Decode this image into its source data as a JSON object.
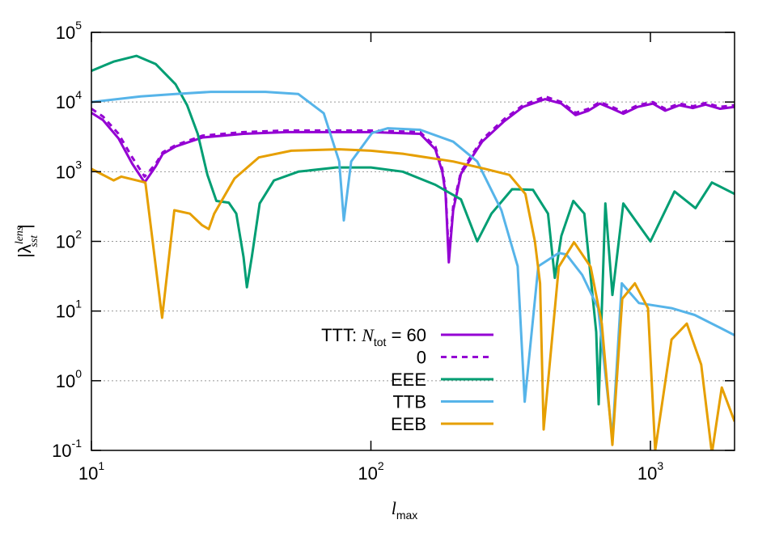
{
  "chart_data": {
    "type": "line",
    "xlabel": {
      "base": "l",
      "sub": "max"
    },
    "ylabel": {
      "base": "|λ",
      "sup": "lens",
      "sub": "sst",
      "end": "|"
    },
    "xscale": "log",
    "yscale": "log",
    "xlim": [
      10,
      2000
    ],
    "ylim": [
      0.1,
      100000
    ],
    "xticks": [
      {
        "value": 10,
        "label": "10",
        "exponent": "1"
      },
      {
        "value": 100,
        "label": "10",
        "exponent": "2"
      },
      {
        "value": 1000,
        "label": "10",
        "exponent": "3"
      }
    ],
    "yticks": [
      {
        "value": 0.1,
        "label": "10",
        "exponent": "-1"
      },
      {
        "value": 1,
        "label": "10",
        "exponent": "0"
      },
      {
        "value": 10,
        "label": "10",
        "exponent": "1"
      },
      {
        "value": 100,
        "label": "10",
        "exponent": "2"
      },
      {
        "value": 1000,
        "label": "10",
        "exponent": "3"
      },
      {
        "value": 10000,
        "label": "10",
        "exponent": "4"
      },
      {
        "value": 100000,
        "label": "10",
        "exponent": "5"
      }
    ],
    "grid": "y",
    "legend": "lower center",
    "series": [
      {
        "name": "TTT: ",
        "name_var": "N",
        "name_sub": "tot",
        "name_end": " = 60",
        "color": "#9400d3",
        "dash": false,
        "x": [
          10,
          11,
          12.5,
          14,
          15.5,
          17,
          18,
          20,
          25,
          35,
          50,
          75,
          100,
          150,
          170,
          180,
          185,
          190,
          197,
          210,
          250,
          300,
          350,
          420,
          480,
          540,
          600,
          660,
          730,
          800,
          900,
          1020,
          1130,
          1270,
          1420,
          1575,
          1775,
          2000
        ],
        "values": [
          7000,
          5500,
          3000,
          1300,
          700,
          1200,
          1800,
          2300,
          3100,
          3500,
          3700,
          3700,
          3700,
          3500,
          2100,
          1000,
          480,
          50,
          280,
          930,
          2700,
          5300,
          8500,
          11000,
          9500,
          6500,
          7500,
          9500,
          8000,
          6800,
          8500,
          9500,
          7500,
          9000,
          8200,
          9200,
          8000,
          8500
        ]
      },
      {
        "name": "0",
        "color": "#9400d3",
        "dash": true,
        "x": [
          10,
          11,
          12.5,
          14,
          15.5,
          17,
          18,
          20,
          25,
          35,
          50,
          75,
          100,
          150,
          170,
          180,
          185,
          190,
          197,
          210,
          250,
          300,
          350,
          420,
          480,
          540,
          600,
          660,
          730,
          800,
          900,
          1020,
          1130,
          1270,
          1420,
          1575,
          1775,
          2000
        ],
        "values": [
          8000,
          6200,
          3500,
          1600,
          850,
          1300,
          1900,
          2400,
          3300,
          3700,
          3900,
          3900,
          3900,
          3700,
          2300,
          1100,
          550,
          60,
          320,
          1000,
          2900,
          5700,
          9000,
          12000,
          10000,
          7000,
          8000,
          10000,
          8500,
          7200,
          9000,
          10000,
          8000,
          9500,
          8700,
          9700,
          8500,
          9000
        ]
      },
      {
        "name": "EEE",
        "color": "#009e73",
        "dash": false,
        "x": [
          10,
          12,
          14.5,
          17,
          20,
          22,
          24,
          26,
          28,
          31,
          33,
          35,
          36,
          37.5,
          40,
          45,
          55,
          75,
          100,
          130,
          170,
          210,
          240,
          270,
          320,
          380,
          430,
          455,
          480,
          530,
          580,
          640,
          653,
          690,
          731,
          800,
          1000,
          1220,
          1450,
          1660,
          2000
        ],
        "values": [
          28000,
          38000,
          46000,
          35000,
          18000,
          9000,
          3500,
          900,
          380,
          360,
          250,
          60,
          22,
          60,
          350,
          750,
          1000,
          1150,
          1150,
          1000,
          650,
          400,
          100,
          250,
          560,
          550,
          250,
          30,
          120,
          380,
          250,
          5,
          0.46,
          350,
          17,
          350,
          100,
          520,
          300,
          700,
          480
        ]
      },
      {
        "name": "TTB",
        "color": "#56b4e9",
        "dash": false,
        "x": [
          10,
          15,
          20,
          26.7,
          42,
          55,
          67.8,
          77,
          80,
          85,
          101,
          115,
          150,
          197,
          240,
          293,
          335,
          355,
          397,
          470,
          500,
          570,
          650,
          731,
          790,
          910,
          1190,
          1440,
          1770,
          2000
        ],
        "values": [
          10000,
          12000,
          13000,
          14000,
          14000,
          13000,
          6900,
          1400,
          200,
          1400,
          3600,
          4200,
          4000,
          2700,
          1400,
          280,
          44,
          0.5,
          44,
          68,
          65,
          33,
          11,
          0.15,
          25,
          13,
          11,
          8.8,
          5.8,
          4.5
        ]
      },
      {
        "name": "EEB",
        "color": "#e69f00",
        "dash": false,
        "x": [
          10,
          12,
          12.8,
          15.6,
          17.9,
          19.8,
          22.5,
          24.9,
          26.3,
          27.5,
          32.5,
          39.7,
          51.9,
          77,
          100,
          131,
          197,
          256,
          313,
          357,
          386,
          403,
          415,
          470,
          533,
          611,
          670,
          731,
          793,
          880,
          980,
          1040,
          1190,
          1350,
          1520,
          1660,
          1800,
          2000
        ],
        "values": [
          1100,
          750,
          850,
          700,
          8,
          280,
          250,
          170,
          150,
          250,
          800,
          1600,
          2000,
          2100,
          2000,
          1800,
          1400,
          1100,
          900,
          480,
          100,
          25,
          0.2,
          43,
          97,
          43,
          6.6,
          0.12,
          15,
          25,
          11,
          0.1,
          3.9,
          6.6,
          1.7,
          0.09,
          0.8,
          0.26
        ]
      }
    ]
  }
}
